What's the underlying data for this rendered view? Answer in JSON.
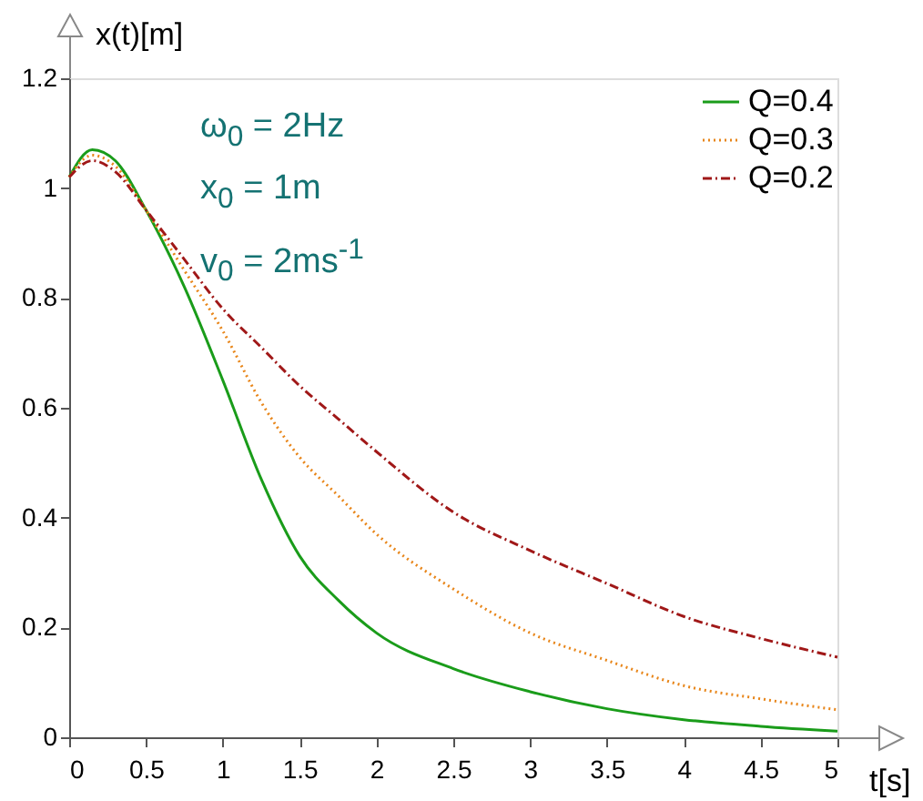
{
  "chart_data": {
    "type": "line",
    "xlabel": "t[s]",
    "ylabel": "x(t)[m]",
    "annotations": [
      "ω$_{0}$ = 2Hz",
      "x$_{0}$ = 1m",
      "v$_{0}$ = 2ms$^{-1}$"
    ],
    "x": [
      0,
      0.15,
      0.3,
      0.5,
      0.75,
      1,
      1.25,
      1.5,
      1.75,
      2,
      2.5,
      3,
      3.5,
      4,
      4.5,
      5
    ],
    "series": [
      {
        "name": "Q=0.4",
        "color": "#1a9c1a",
        "line_style": "solid",
        "values": [
          1.02,
          1.07,
          1.05,
          0.96,
          0.82,
          0.65,
          0.47,
          0.33,
          0.25,
          0.19,
          0.125,
          0.083,
          0.052,
          0.032,
          0.02,
          0.011
        ]
      },
      {
        "name": "Q=0.3",
        "color": "#e8861a",
        "line_style": "dotted",
        "values": [
          1.02,
          1.06,
          1.04,
          0.96,
          0.85,
          0.74,
          0.61,
          0.51,
          0.44,
          0.37,
          0.27,
          0.19,
          0.14,
          0.094,
          0.07,
          0.05
        ]
      },
      {
        "name": "Q=0.2",
        "color": "#a01818",
        "line_style": "dashed",
        "values": [
          1.02,
          1.05,
          1.03,
          0.96,
          0.87,
          0.78,
          0.71,
          0.64,
          0.58,
          0.52,
          0.41,
          0.34,
          0.28,
          0.22,
          0.18,
          0.146
        ]
      }
    ],
    "xlim": [
      0,
      5
    ],
    "xticks": [
      0,
      0.5,
      1,
      1.5,
      2,
      2.5,
      3,
      3.5,
      4,
      4.5,
      5
    ],
    "ylim": [
      0,
      1.2
    ],
    "yticks": [
      0,
      0.2,
      0.4,
      0.6,
      0.8,
      1,
      1.2
    ],
    "legend": "top right",
    "grid": false,
    "marker": "none"
  }
}
